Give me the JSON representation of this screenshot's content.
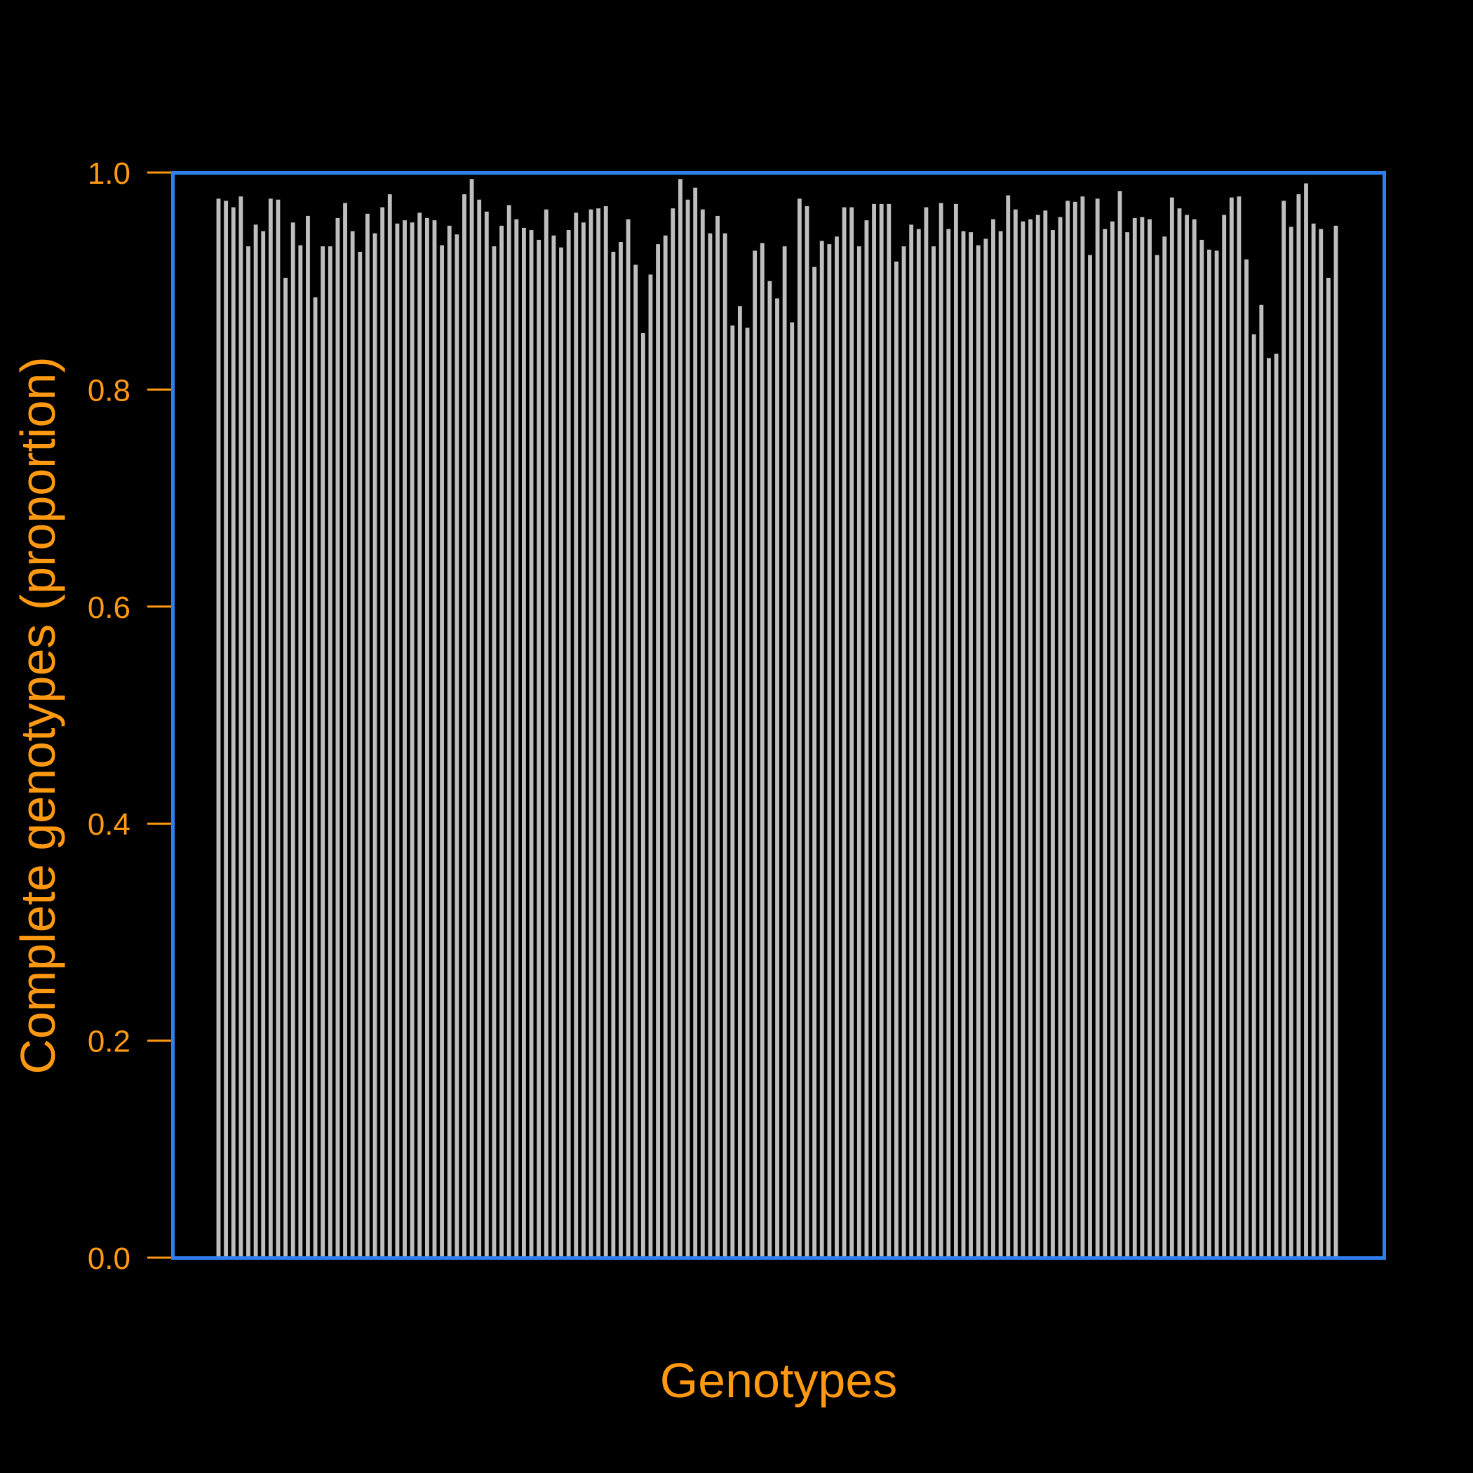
{
  "chart_data": {
    "type": "bar",
    "title": "",
    "xlabel": "Genotypes",
    "ylabel": "Complete genotypes (proportion)",
    "ylim": [
      0,
      1
    ],
    "yticks": [
      "0.0",
      "0.2",
      "0.4",
      "0.6",
      "0.8",
      "1.0"
    ],
    "grid": false,
    "colors": {
      "background": "#000000",
      "bars": "#bebebe",
      "frame": "#2f7fef",
      "text": "#ff9912"
    },
    "values": [
      0.976,
      0.974,
      0.968,
      0.978,
      0.932,
      0.952,
      0.946,
      0.976,
      0.975,
      0.903,
      0.954,
      0.933,
      0.96,
      0.885,
      0.932,
      0.932,
      0.958,
      0.972,
      0.946,
      0.927,
      0.962,
      0.944,
      0.968,
      0.98,
      0.953,
      0.956,
      0.954,
      0.963,
      0.958,
      0.956,
      0.933,
      0.951,
      0.943,
      0.98,
      0.994,
      0.975,
      0.964,
      0.932,
      0.951,
      0.97,
      0.957,
      0.949,
      0.947,
      0.938,
      0.966,
      0.942,
      0.931,
      0.947,
      0.963,
      0.954,
      0.966,
      0.967,
      0.969,
      0.927,
      0.936,
      0.957,
      0.915,
      0.852,
      0.906,
      0.934,
      0.942,
      0.967,
      0.994,
      0.975,
      0.986,
      0.966,
      0.944,
      0.96,
      0.944,
      0.859,
      0.877,
      0.857,
      0.928,
      0.935,
      0.9,
      0.884,
      0.932,
      0.862,
      0.976,
      0.969,
      0.913,
      0.937,
      0.934,
      0.941,
      0.968,
      0.968,
      0.932,
      0.956,
      0.971,
      0.971,
      0.971,
      0.918,
      0.932,
      0.952,
      0.948,
      0.968,
      0.932,
      0.972,
      0.948,
      0.971,
      0.946,
      0.945,
      0.933,
      0.939,
      0.957,
      0.946,
      0.979,
      0.966,
      0.955,
      0.957,
      0.961,
      0.965,
      0.947,
      0.959,
      0.974,
      0.973,
      0.978,
      0.924,
      0.976,
      0.948,
      0.955,
      0.983,
      0.945,
      0.958,
      0.959,
      0.957,
      0.924,
      0.941,
      0.977,
      0.967,
      0.961,
      0.957,
      0.938,
      0.929,
      0.928,
      0.961,
      0.977,
      0.978,
      0.92,
      0.851,
      0.878,
      0.829,
      0.833,
      0.974,
      0.95,
      0.98,
      0.99,
      0.953,
      0.948,
      0.903,
      0.951
    ]
  }
}
